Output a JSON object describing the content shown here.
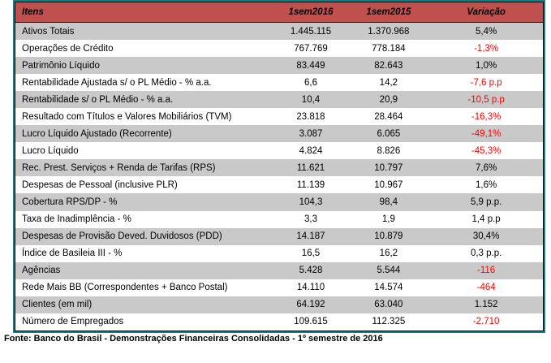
{
  "table": {
    "columns": [
      "Itens",
      "1sem2016",
      "1sem2015",
      "Variação"
    ],
    "rows": [
      {
        "label": "Ativos Totais",
        "y2016": "1.445.115",
        "y2015": "1.370.968",
        "change": "5,4%",
        "negative": false
      },
      {
        "label": "Operações de Crédito",
        "y2016": "767.769",
        "y2015": "778.184",
        "change": "-1,3%",
        "negative": true
      },
      {
        "label": "Patrimônio Líquido",
        "y2016": "83.449",
        "y2015": "82.643",
        "change": "1,0%",
        "negative": false
      },
      {
        "label": "Rentabilidade Ajustada s/ o PL Médio - % a.a.",
        "y2016": "6,6",
        "y2015": "14,2",
        "change": "-7,6 p.p",
        "negative": true
      },
      {
        "label": "Rentabilidade s/ o PL Médio - % a.a.",
        "y2016": "10,4",
        "y2015": "20,9",
        "change": "-10,5 p.p",
        "negative": true
      },
      {
        "label": "Resultado com Títulos e Valores Mobiliários (TVM)",
        "y2016": "23.818",
        "y2015": "28.464",
        "change": "-16,3%",
        "negative": true
      },
      {
        "label": "Lucro Líquido Ajustado (Recorrente)",
        "y2016": "3.087",
        "y2015": "6.065",
        "change": "-49,1%",
        "negative": true
      },
      {
        "label": "Lucro Líquido",
        "y2016": "4.824",
        "y2015": "8.826",
        "change": "-45,3%",
        "negative": true
      },
      {
        "label": "Rec. Prest. Serviços + Renda de Tarifas (RPS)",
        "y2016": "11.621",
        "y2015": "10.797",
        "change": "7,6%",
        "negative": false
      },
      {
        "label": "Despesas de Pessoal (inclusive PLR)",
        "y2016": "11.139",
        "y2015": "10.967",
        "change": "1,6%",
        "negative": false
      },
      {
        "label": "Cobertura RPS/DP - %",
        "y2016": "104,3",
        "y2015": "98,4",
        "change": "5,9 p.p.",
        "negative": false
      },
      {
        "label": "Taxa de Inadimplência - %",
        "y2016": "3,3",
        "y2015": "1,9",
        "change": "1,4 p.p",
        "negative": false
      },
      {
        "label": "Despesas de Provisão Deved. Duvidosos (PDD)",
        "y2016": "14.187",
        "y2015": "10.879",
        "change": "30,4%",
        "negative": false
      },
      {
        "label": "Índice de Basileia III - %",
        "y2016": "16,5",
        "y2015": "16,2",
        "change": "0,3 p.p.",
        "negative": false
      },
      {
        "label": "Agências",
        "y2016": "5.428",
        "y2015": "5.544",
        "change": "-116",
        "negative": true
      },
      {
        "label": "Rede Mais BB (Correspondentes + Banco Postal)",
        "y2016": "14.110",
        "y2015": "14.574",
        "change": "-464",
        "negative": true
      },
      {
        "label": "Clientes (em mil)",
        "y2016": "64.192",
        "y2015": "63.040",
        "change": "1.152",
        "negative": false
      },
      {
        "label": "Número de Empregados",
        "y2016": "109.615",
        "y2015": "112.325",
        "change": "-2.710",
        "negative": true
      }
    ]
  },
  "footer": {
    "text": "Fonte: Banco do Brasil - Demonstrações Financeiras Consolidadas - 1º semestre de 2016"
  },
  "colors": {
    "header_bg": "#C0504D",
    "header_text": "#000000",
    "row_alt_bg": "#C9C9C9",
    "row_bg": "#FFFFFF",
    "frame_border": "#157E85",
    "inner_border": "#000000",
    "negative_value": "#FF0000"
  }
}
